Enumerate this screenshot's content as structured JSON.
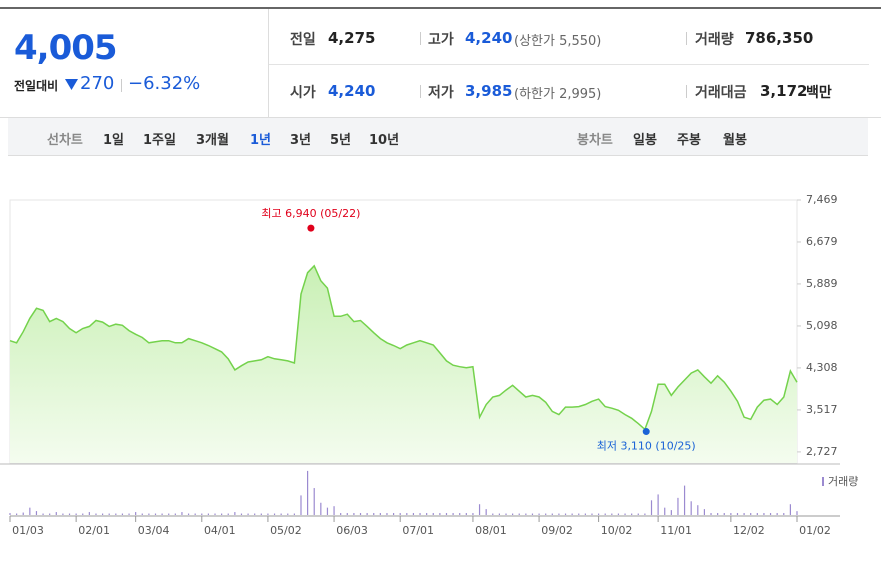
{
  "quote": {
    "price": "4,005",
    "change_label": "전일대비",
    "change": "270",
    "change_rate": "−6.32%"
  },
  "summary": [
    {
      "label": "전일",
      "value": "4,275"
    },
    {
      "label": "고가",
      "value": "4,240",
      "note": "(상한가 5,550)"
    },
    {
      "label": "거래량",
      "value": "786,350"
    },
    {
      "label": "시가",
      "value": "4,240"
    },
    {
      "label": "저가",
      "value": "3,985",
      "note": "(하한가 2,995)"
    },
    {
      "label": "거래대금",
      "value": "3,172",
      "unit": "백만"
    }
  ],
  "tabs": {
    "line_label": "선차트",
    "line": [
      "1일",
      "1주일",
      "3개월",
      "1년",
      "3년",
      "5년",
      "10년"
    ],
    "selected": 3,
    "candle_label": "봉차트",
    "candle": [
      "일봉",
      "주봉",
      "월봉"
    ]
  },
  "chart_data": {
    "type": "line",
    "color": "#74d24c",
    "values": [
      4820,
      4780,
      4990,
      5240,
      5430,
      5390,
      5180,
      5240,
      5180,
      5050,
      4970,
      5050,
      5090,
      5200,
      5170,
      5090,
      5130,
      5110,
      5010,
      4940,
      4880,
      4780,
      4800,
      4820,
      4820,
      4780,
      4780,
      4860,
      4820,
      4780,
      4730,
      4670,
      4610,
      4480,
      4270,
      4350,
      4420,
      4440,
      4460,
      4520,
      4480,
      4460,
      4440,
      4400,
      5700,
      6100,
      6230,
      5950,
      5810,
      5280,
      5280,
      5320,
      5180,
      5200,
      5090,
      4970,
      4860,
      4780,
      4730,
      4670,
      4740,
      4780,
      4820,
      4780,
      4740,
      4590,
      4440,
      4360,
      4330,
      4310,
      4330,
      3380,
      3620,
      3760,
      3790,
      3890,
      3980,
      3870,
      3760,
      3790,
      3760,
      3660,
      3490,
      3430,
      3570,
      3570,
      3580,
      3620,
      3680,
      3720,
      3580,
      3550,
      3510,
      3430,
      3360,
      3260,
      3150,
      3490,
      4000,
      4000,
      3790,
      3950,
      4080,
      4210,
      4270,
      4140,
      4020,
      4160,
      4040,
      3870,
      3680,
      3380,
      3340,
      3570,
      3700,
      3720,
      3620,
      3760,
      4250,
      4040
    ],
    "xlim": [
      0,
      119
    ],
    "xticks": [
      {
        "value": 0,
        "label": "01/03"
      },
      {
        "value": 10,
        "label": "02/01"
      },
      {
        "value": 19,
        "label": "03/04"
      },
      {
        "value": 29,
        "label": "04/01"
      },
      {
        "value": 39,
        "label": "05/02"
      },
      {
        "value": 49,
        "label": "06/03"
      },
      {
        "value": 59,
        "label": "07/01"
      },
      {
        "value": 70,
        "label": "08/01"
      },
      {
        "value": 80,
        "label": "09/02"
      },
      {
        "value": 89,
        "label": "10/02"
      },
      {
        "value": 98,
        "label": "11/01"
      },
      {
        "value": 109,
        "label": "12/02"
      },
      {
        "value": 119,
        "label": "01/02"
      }
    ],
    "ylim": [
      2518,
      7469
    ],
    "yticks": [
      {
        "value": 7469,
        "label": "7,469"
      },
      {
        "value": 6679,
        "label": "6,679"
      },
      {
        "value": 5889,
        "label": "5,889"
      },
      {
        "value": 5098,
        "label": "5,098"
      },
      {
        "value": 4308,
        "label": "4,308"
      },
      {
        "value": 3517,
        "label": "3,517"
      },
      {
        "value": 2727,
        "label": "2,727"
      }
    ],
    "annotations": [
      {
        "text": "최고 6,940 (05/22)",
        "x": 45.5,
        "y": 6940,
        "color": "#e0001b",
        "side": "top"
      },
      {
        "text": "최저 3,110 (10/25)",
        "x": 96.2,
        "y": 3110,
        "color": "#1a63d6",
        "side": "bottom"
      }
    ],
    "volume": {
      "name": "거래량",
      "color": "#9b8ad0",
      "ylim": [
        0,
        10000000
      ],
      "values": [
        400000,
        300000,
        500000,
        1500000,
        800000,
        300000,
        300000,
        600000,
        300000,
        300000,
        300000,
        300000,
        600000,
        300000,
        300000,
        300000,
        300000,
        300000,
        300000,
        600000,
        300000,
        300000,
        300000,
        300000,
        300000,
        300000,
        600000,
        300000,
        300000,
        300000,
        300000,
        300000,
        300000,
        300000,
        600000,
        300000,
        300000,
        300000,
        300000,
        300000,
        300000,
        300000,
        300000,
        300000,
        4000000,
        9000000,
        5500000,
        2500000,
        1500000,
        1800000,
        400000,
        400000,
        400000,
        400000,
        400000,
        400000,
        400000,
        400000,
        400000,
        400000,
        400000,
        400000,
        400000,
        400000,
        400000,
        400000,
        400000,
        400000,
        400000,
        400000,
        400000,
        2200000,
        1200000,
        300000,
        300000,
        300000,
        300000,
        300000,
        300000,
        300000,
        300000,
        300000,
        300000,
        300000,
        300000,
        300000,
        300000,
        300000,
        300000,
        300000,
        300000,
        300000,
        300000,
        300000,
        300000,
        300000,
        300000,
        3000000,
        4200000,
        1500000,
        1000000,
        3500000,
        6000000,
        2800000,
        2000000,
        1200000,
        400000,
        400000,
        400000,
        400000,
        400000,
        400000,
        400000,
        400000,
        400000,
        400000,
        400000,
        400000,
        2200000,
        786350
      ]
    }
  }
}
